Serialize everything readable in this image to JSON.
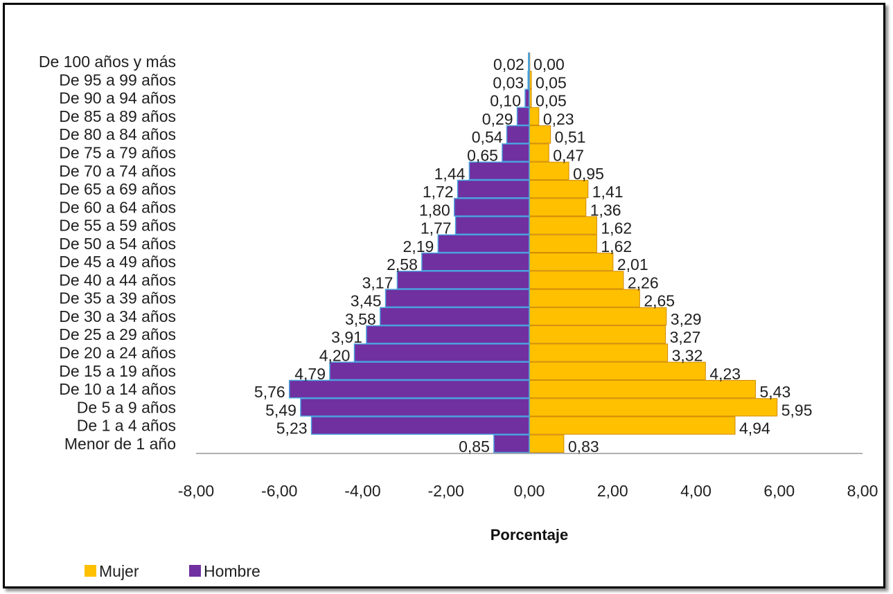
{
  "chart_data": {
    "type": "bar",
    "orientation": "horizontal",
    "layout": "population-pyramid",
    "categories": [
      "De 100 años y más",
      "De 95 a 99 años",
      "De 90 a 94 años",
      "De 85 a 89 años",
      "De 80 a 84 años",
      "De 75 a 79 años",
      "De 70 a 74 años",
      "De 65 a 69 años",
      "De 60 a 64 años",
      "De 55 a 59 años",
      "De 50 a 54 años",
      "De 45 a 49 años",
      "De 40 a 44 años",
      "De 35 a 39 años",
      "De 30 a 34 años",
      "De 25 a 29 años",
      "De 20 a 24 años",
      "De 15 a 19 años",
      "De 10 a 14 años",
      "De 5 a 9 años",
      "De 1 a 4 años",
      "Menor de 1 año"
    ],
    "series": [
      {
        "name": "Hombre",
        "color": "#7030a0",
        "values": [
          -0.02,
          -0.03,
          -0.1,
          -0.29,
          -0.54,
          -0.65,
          -1.44,
          -1.72,
          -1.8,
          -1.77,
          -2.19,
          -2.58,
          -3.17,
          -3.45,
          -3.58,
          -3.91,
          -4.2,
          -4.79,
          -5.76,
          -5.49,
          -5.23,
          -0.85
        ],
        "labels": [
          "0,02",
          "0,03",
          "0,10",
          "0,29",
          "0,54",
          "0,65",
          "1,44",
          "1,72",
          "1,80",
          "1,77",
          "2,19",
          "2,58",
          "3,17",
          "3,45",
          "3,58",
          "3,91",
          "4,20",
          "4,79",
          "5,76",
          "5,49",
          "5,23",
          "0,85"
        ]
      },
      {
        "name": "Mujer",
        "color": "#ffc000",
        "values": [
          0.0,
          0.05,
          0.05,
          0.23,
          0.51,
          0.47,
          0.95,
          1.41,
          1.36,
          1.62,
          1.62,
          2.01,
          2.26,
          2.65,
          3.29,
          3.27,
          3.32,
          4.23,
          5.43,
          5.95,
          4.94,
          0.83
        ],
        "labels": [
          "0,00",
          "0,05",
          "0,05",
          "0,23",
          "0,51",
          "0,47",
          "0,95",
          "1,41",
          "1,36",
          "1,62",
          "1,62",
          "2,01",
          "2,26",
          "2,65",
          "3,29",
          "3,27",
          "3,32",
          "4,23",
          "5,43",
          "5,95",
          "4,94",
          "0,83"
        ]
      }
    ],
    "xlim": [
      -8,
      8
    ],
    "x_ticks": [
      -8,
      -6,
      -4,
      -2,
      0,
      2,
      4,
      6,
      8
    ],
    "x_tick_labels": [
      "-8,00",
      "-6,00",
      "-4,00",
      "-2,00",
      "0,00",
      "2,00",
      "4,00",
      "6,00",
      "8,00"
    ],
    "xlabel": "Porcentaje",
    "ylabel": "",
    "title": "",
    "grid": false,
    "legend": {
      "position": "bottom-left",
      "entries": [
        {
          "name": "Mujer",
          "color": "#ffc000"
        },
        {
          "name": "Hombre",
          "color": "#7030a0"
        }
      ]
    }
  }
}
